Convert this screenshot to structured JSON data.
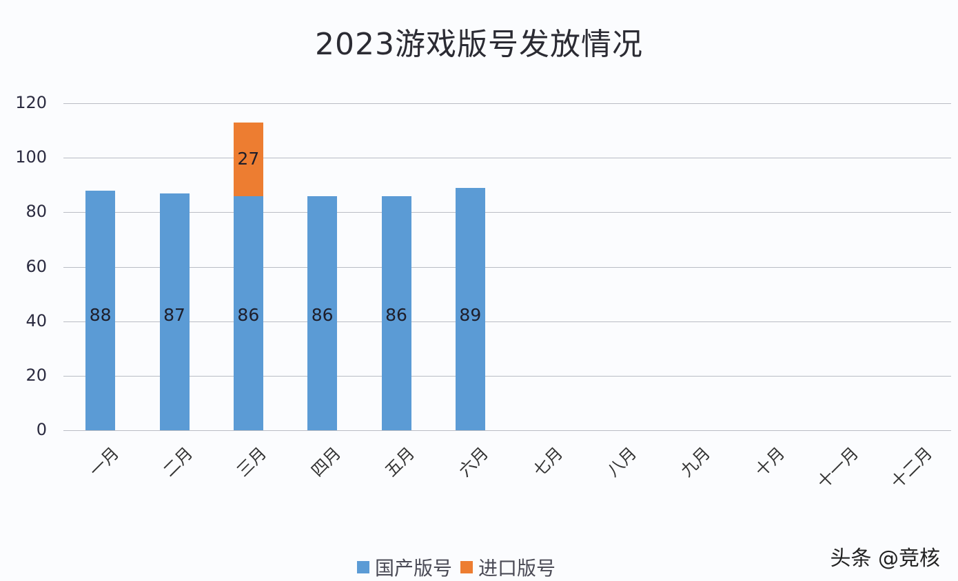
{
  "chart_data": {
    "type": "bar",
    "stacked": true,
    "title": "2023游戏版号发放情况",
    "xlabel": "",
    "ylabel": "",
    "ylim": [
      0,
      120
    ],
    "yticks": [
      0,
      20,
      40,
      60,
      80,
      100,
      120
    ],
    "grid": true,
    "legend_position": "bottom",
    "categories": [
      "一月",
      "二月",
      "三月",
      "四月",
      "五月",
      "六月",
      "七月",
      "八月",
      "九月",
      "十月",
      "十一月",
      "十二月"
    ],
    "series": [
      {
        "name": "国产版号",
        "color": "#5b9bd5",
        "values": [
          88,
          87,
          86,
          86,
          86,
          89,
          null,
          null,
          null,
          null,
          null,
          null
        ]
      },
      {
        "name": "进口版号",
        "color": "#ed7d31",
        "values": [
          null,
          null,
          27,
          null,
          null,
          null,
          null,
          null,
          null,
          null,
          null,
          null
        ]
      }
    ]
  },
  "watermark": "头条 @竞核"
}
